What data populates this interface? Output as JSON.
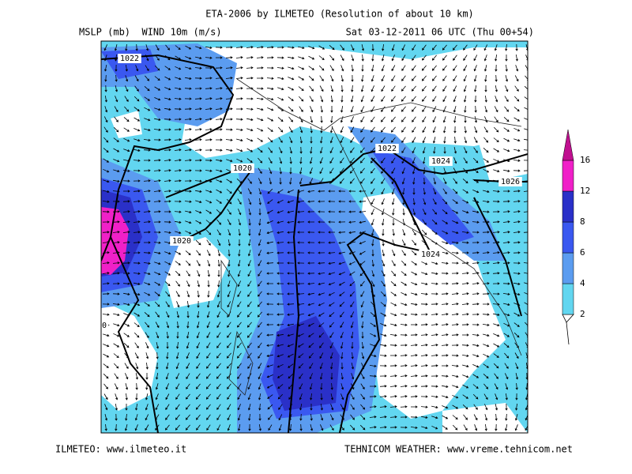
{
  "header": {
    "title": "ETA-2006 by ILMETEO (Resolution of about 10 km)",
    "left": "MSLP (mb)  WIND 10m (m/s)",
    "right": "Sat 03-12-2011 06 UTC (Thu 00+54)"
  },
  "map": {
    "isobar_labels": [
      "1022",
      "1020",
      "1020",
      "1022",
      "1024",
      "1024",
      "1026",
      "0"
    ]
  },
  "legend": {
    "labels": [
      "2",
      "4",
      "6",
      "8",
      "12",
      "16"
    ],
    "colors": [
      "#62d6f0",
      "#5b9cf0",
      "#3a58f0",
      "#2a30c8",
      "#f020c8",
      "#c01090"
    ]
  },
  "footer": {
    "left": "ILMETEO: www.ilmeteo.it",
    "right": "TEHNICOM WEATHER: www.vreme.tehnicom.net"
  }
}
